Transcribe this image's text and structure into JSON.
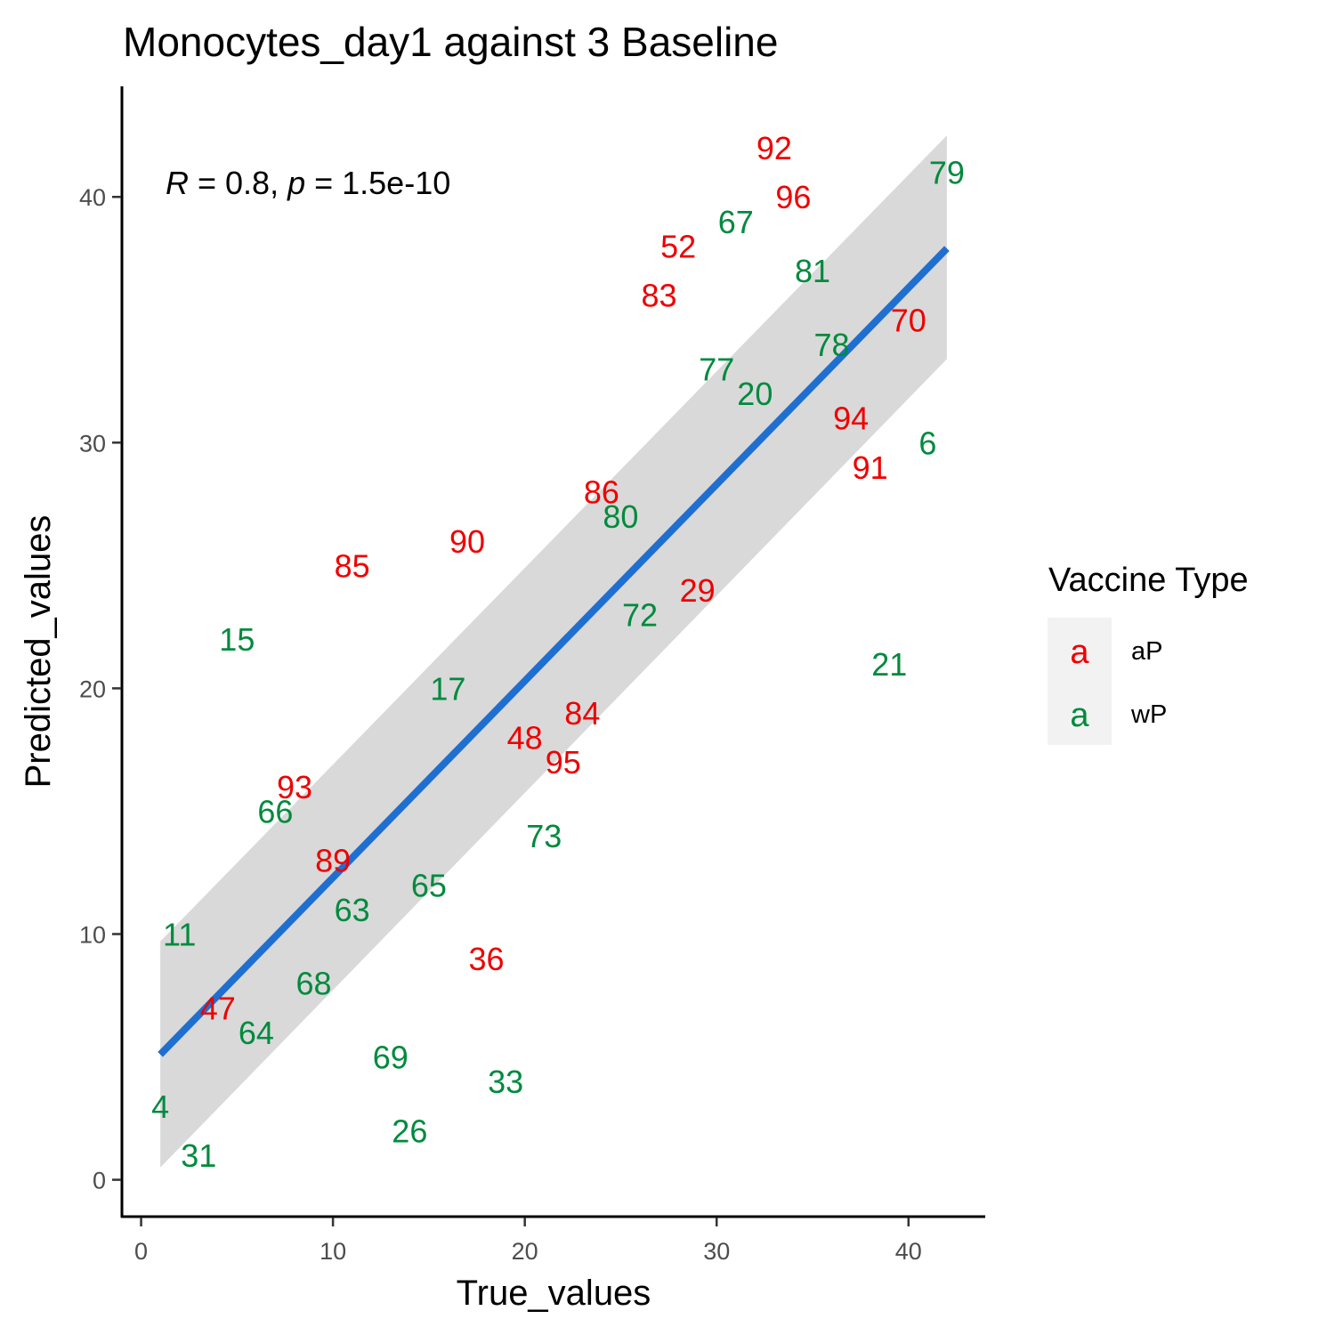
{
  "chart_data": {
    "type": "scatter",
    "title": "Monocytes_day1 against 3 Baseline",
    "xlabel": "True_values",
    "ylabel": "Predicted_values",
    "xlim": [
      -1,
      44
    ],
    "ylim": [
      -1.5,
      44.5
    ],
    "x_ticks": [
      0,
      10,
      20,
      30,
      40
    ],
    "y_ticks": [
      0,
      10,
      20,
      30,
      40
    ],
    "grid": false,
    "annotation": {
      "r_symbol": "R",
      "r_value": " = 0.8, ",
      "p_symbol": "p",
      "p_value": " = 1.5e-10"
    },
    "legend": {
      "title": "Vaccine Type",
      "position": "right",
      "key_glyph": "a",
      "items": [
        {
          "label": "aP",
          "color": "#ee0000"
        },
        {
          "label": "wP",
          "color": "#008a3e"
        }
      ]
    },
    "regression": {
      "color": "#1f6fd1",
      "band_color": "#d9d9d9",
      "x_start": 1,
      "x_end": 42,
      "y_start": 5.1,
      "y_end": 37.9,
      "band_lower_start": 0.5,
      "band_upper_start": 9.7,
      "band_lower_end": 33.4,
      "band_upper_end": 42.5
    },
    "series": [
      {
        "name": "aP",
        "color": "#ee0000",
        "points": [
          {
            "x": 33,
            "y": 42,
            "label": "92"
          },
          {
            "x": 34,
            "y": 40,
            "label": "96"
          },
          {
            "x": 28,
            "y": 38,
            "label": "52"
          },
          {
            "x": 27,
            "y": 36,
            "label": "83"
          },
          {
            "x": 40,
            "y": 35,
            "label": "70"
          },
          {
            "x": 37,
            "y": 31,
            "label": "94"
          },
          {
            "x": 38,
            "y": 29,
            "label": "91"
          },
          {
            "x": 24,
            "y": 28,
            "label": "86"
          },
          {
            "x": 17,
            "y": 26,
            "label": "90"
          },
          {
            "x": 11,
            "y": 25,
            "label": "85"
          },
          {
            "x": 29,
            "y": 24,
            "label": "29"
          },
          {
            "x": 23,
            "y": 19,
            "label": "84"
          },
          {
            "x": 20,
            "y": 18,
            "label": "48"
          },
          {
            "x": 22,
            "y": 17,
            "label": "95"
          },
          {
            "x": 8,
            "y": 16,
            "label": "93"
          },
          {
            "x": 10,
            "y": 13,
            "label": "89"
          },
          {
            "x": 18,
            "y": 9,
            "label": "36"
          },
          {
            "x": 4,
            "y": 7,
            "label": "47"
          }
        ]
      },
      {
        "name": "wP",
        "color": "#008a3e",
        "points": [
          {
            "x": 42,
            "y": 41,
            "label": "79"
          },
          {
            "x": 31,
            "y": 39,
            "label": "67"
          },
          {
            "x": 35,
            "y": 37,
            "label": "81"
          },
          {
            "x": 36,
            "y": 34,
            "label": "78"
          },
          {
            "x": 30,
            "y": 33,
            "label": "77"
          },
          {
            "x": 32,
            "y": 32,
            "label": "20"
          },
          {
            "x": 41,
            "y": 30,
            "label": "6"
          },
          {
            "x": 25,
            "y": 27,
            "label": "80"
          },
          {
            "x": 26,
            "y": 23,
            "label": "72"
          },
          {
            "x": 5,
            "y": 22,
            "label": "15"
          },
          {
            "x": 39,
            "y": 21,
            "label": "21"
          },
          {
            "x": 16,
            "y": 20,
            "label": "17"
          },
          {
            "x": 7,
            "y": 15,
            "label": "66"
          },
          {
            "x": 21,
            "y": 14,
            "label": "73"
          },
          {
            "x": 15,
            "y": 12,
            "label": "65"
          },
          {
            "x": 11,
            "y": 11,
            "label": "63"
          },
          {
            "x": 2,
            "y": 10,
            "label": "11"
          },
          {
            "x": 9,
            "y": 8,
            "label": "68"
          },
          {
            "x": 6,
            "y": 6,
            "label": "64"
          },
          {
            "x": 13,
            "y": 5,
            "label": "69"
          },
          {
            "x": 19,
            "y": 4,
            "label": "33"
          },
          {
            "x": 1,
            "y": 3,
            "label": "4"
          },
          {
            "x": 14,
            "y": 2,
            "label": "26"
          },
          {
            "x": 3,
            "y": 1,
            "label": "31"
          }
        ]
      }
    ]
  }
}
